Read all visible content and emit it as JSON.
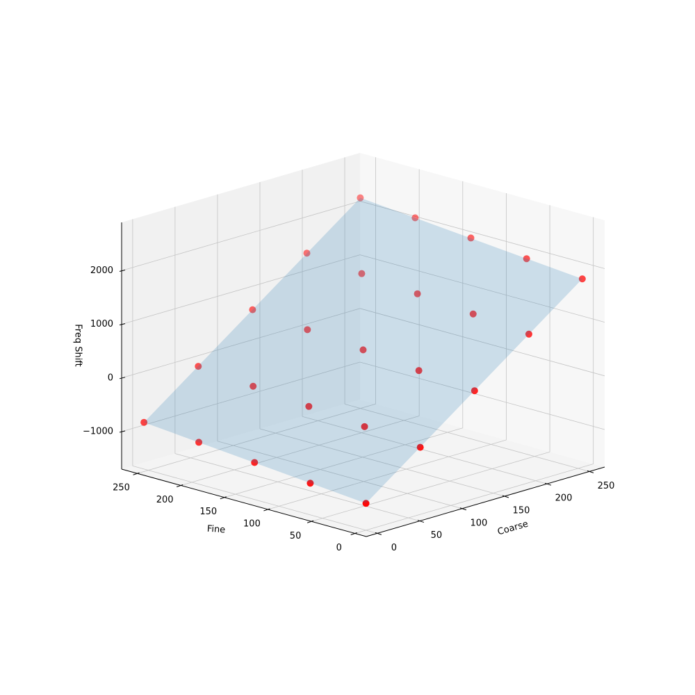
{
  "chart_data": {
    "type": "scatter3d",
    "xlabel": "Coarse",
    "ylabel": "Fine",
    "zlabel": "Freq Shift",
    "x": [
      0,
      64,
      128,
      192,
      255,
      0,
      64,
      128,
      192,
      255,
      0,
      64,
      128,
      192,
      255,
      0,
      64,
      128,
      192,
      255,
      0,
      64,
      128,
      192,
      255
    ],
    "y": [
      0,
      0,
      0,
      0,
      0,
      64,
      64,
      64,
      64,
      64,
      128,
      128,
      128,
      128,
      128,
      192,
      192,
      192,
      192,
      192,
      255,
      255,
      255,
      255,
      255
    ],
    "z": [
      -1200,
      -450,
      310,
      1070,
      1810,
      -1110,
      -350,
      400,
      1160,
      1900,
      -1010,
      -260,
      500,
      1250,
      2000,
      -920,
      -170,
      590,
      1340,
      2090,
      -830,
      -80,
      680,
      1440,
      2180
    ],
    "color": "#ff0000",
    "depthshade": true,
    "surface": {
      "x": [
        0,
        255
      ],
      "y": [
        0,
        255
      ],
      "z": [
        [
          -1200,
          1810
        ],
        [
          -830,
          2180
        ]
      ],
      "color": "#1f77b4"
    },
    "xlim": [
      -13,
      268
    ],
    "ylim": [
      -13,
      268
    ],
    "zlim": [
      -1700,
      2900
    ],
    "xticks": [
      0,
      50,
      100,
      150,
      200,
      250
    ],
    "yticks": [
      0,
      50,
      100,
      150,
      200,
      250
    ],
    "zticks": [
      {
        "value": -1000,
        "label": "−1000"
      },
      0,
      1000,
      2000
    ],
    "grid": true
  }
}
